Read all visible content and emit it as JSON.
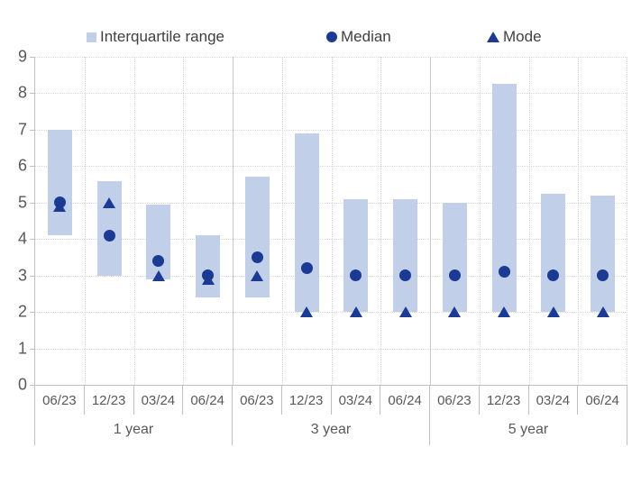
{
  "legend": {
    "items": [
      {
        "label": "Interquartile range",
        "marker": "square-icon"
      },
      {
        "label": "Median",
        "marker": "circle-icon"
      },
      {
        "label": "Mode",
        "marker": "triangle-icon"
      }
    ]
  },
  "colors": {
    "iqr_fill": "#c1cfe9",
    "marker": "#1a3a94",
    "grid": "#d9d9d9",
    "axis_line": "#bfbfbf",
    "tick_text": "#595959",
    "legend_text": "#404040"
  },
  "chart_data": {
    "type": "bar",
    "subtype": "floating-bar-with-scatter-markers",
    "title": "",
    "xlabel": "",
    "ylabel": "",
    "ylim": [
      0,
      9
    ],
    "y_tick_labels": [
      "0",
      "1",
      "2",
      "3",
      "4",
      "5",
      "6",
      "7",
      "8",
      "9"
    ],
    "grid": true,
    "legend_position": "top",
    "group_labels": [
      "1 year",
      "3 year",
      "5 year"
    ],
    "categories_per_group": [
      "06/23",
      "12/23",
      "03/24",
      "06/24"
    ],
    "series_names": [
      "Interquartile range",
      "Median",
      "Mode"
    ],
    "points": [
      {
        "group": "1 year",
        "date": "06/23",
        "iqr_low": 4.1,
        "iqr_high": 7.0,
        "median": 5.0,
        "mode": 4.9
      },
      {
        "group": "1 year",
        "date": "12/23",
        "iqr_low": 3.0,
        "iqr_high": 5.6,
        "median": 4.1,
        "mode": 5.0
      },
      {
        "group": "1 year",
        "date": "03/24",
        "iqr_low": 2.9,
        "iqr_high": 4.95,
        "median": 3.4,
        "mode": 3.0
      },
      {
        "group": "1 year",
        "date": "06/24",
        "iqr_low": 2.4,
        "iqr_high": 4.1,
        "median": 3.0,
        "mode": 2.9
      },
      {
        "group": "3 year",
        "date": "06/23",
        "iqr_low": 2.4,
        "iqr_high": 5.7,
        "median": 3.5,
        "mode": 3.0
      },
      {
        "group": "3 year",
        "date": "12/23",
        "iqr_low": 2.0,
        "iqr_high": 6.9,
        "median": 3.2,
        "mode": 2.0
      },
      {
        "group": "3 year",
        "date": "03/24",
        "iqr_low": 2.0,
        "iqr_high": 5.1,
        "median": 3.0,
        "mode": 2.0
      },
      {
        "group": "3 year",
        "date": "06/24",
        "iqr_low": 2.0,
        "iqr_high": 5.1,
        "median": 3.0,
        "mode": 2.0
      },
      {
        "group": "5 year",
        "date": "06/23",
        "iqr_low": 2.0,
        "iqr_high": 5.0,
        "median": 3.0,
        "mode": 2.0
      },
      {
        "group": "5 year",
        "date": "12/23",
        "iqr_low": 2.0,
        "iqr_high": 8.25,
        "median": 3.1,
        "mode": 2.0
      },
      {
        "group": "5 year",
        "date": "03/24",
        "iqr_low": 2.0,
        "iqr_high": 5.25,
        "median": 3.0,
        "mode": 2.0
      },
      {
        "group": "5 year",
        "date": "06/24",
        "iqr_low": 2.0,
        "iqr_high": 5.2,
        "median": 3.0,
        "mode": 2.0
      }
    ]
  }
}
